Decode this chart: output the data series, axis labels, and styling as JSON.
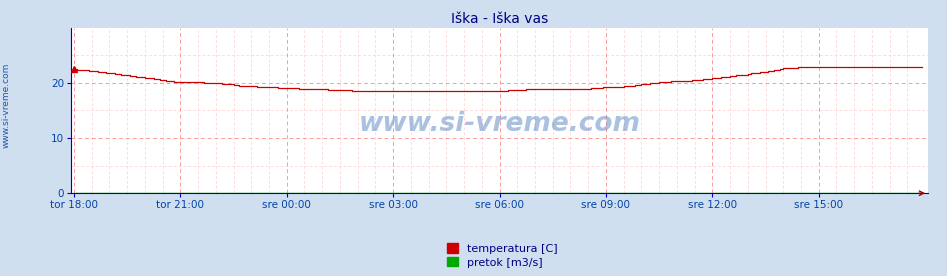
{
  "title": "Iška - Iška vas",
  "title_color": "#000080",
  "bg_color": "#d0dff0",
  "plot_bg_color": "#ffffff",
  "axis_color": "#0000bb",
  "grid_color_major": "#ff9999",
  "grid_color_minor": "#ffcccc",
  "tick_label_color": "#0044aa",
  "watermark": "www.si-vreme.com",
  "watermark_color": "#4477bb",
  "watermark_alpha": 0.45,
  "xticklabels": [
    "tor 18:00",
    "tor 21:00",
    "sre 00:00",
    "sre 03:00",
    "sre 06:00",
    "sre 09:00",
    "sre 12:00",
    "sre 15:00"
  ],
  "xtick_positions": [
    0,
    36,
    72,
    108,
    144,
    180,
    216,
    252
  ],
  "yticks": [
    0,
    10,
    20
  ],
  "ylim": [
    0,
    30
  ],
  "xlim": [
    -1,
    289
  ],
  "temp_color": "#cc0000",
  "flow_color": "#00aa00",
  "legend_temp": "temperatura [C]",
  "legend_flow": "pretok [m3/s]",
  "n_points": 288,
  "temp_data": [
    22.5,
    22.4,
    22.4,
    22.3,
    22.3,
    22.2,
    22.2,
    22.1,
    22.0,
    22.0,
    21.9,
    21.8,
    21.8,
    21.7,
    21.6,
    21.6,
    21.5,
    21.4,
    21.4,
    21.3,
    21.2,
    21.1,
    21.0,
    21.0,
    20.9,
    20.8,
    20.8,
    20.7,
    20.6,
    20.5,
    20.5,
    20.4,
    20.3,
    20.3,
    20.2,
    20.2,
    20.2,
    20.2,
    20.2,
    20.2,
    20.2,
    20.1,
    20.1,
    20.1,
    20.0,
    20.0,
    20.0,
    20.0,
    19.9,
    19.9,
    19.8,
    19.8,
    19.7,
    19.7,
    19.6,
    19.6,
    19.5,
    19.5,
    19.4,
    19.4,
    19.4,
    19.4,
    19.3,
    19.3,
    19.3,
    19.3,
    19.2,
    19.2,
    19.2,
    19.1,
    19.1,
    19.0,
    19.0,
    19.0,
    19.0,
    19.0,
    18.9,
    18.9,
    18.9,
    18.8,
    18.8,
    18.8,
    18.8,
    18.8,
    18.8,
    18.8,
    18.7,
    18.7,
    18.7,
    18.7,
    18.7,
    18.7,
    18.7,
    18.7,
    18.6,
    18.6,
    18.6,
    18.6,
    18.6,
    18.6,
    18.6,
    18.6,
    18.6,
    18.6,
    18.6,
    18.6,
    18.6,
    18.6,
    18.6,
    18.6,
    18.6,
    18.6,
    18.6,
    18.6,
    18.6,
    18.6,
    18.6,
    18.6,
    18.5,
    18.5,
    18.5,
    18.5,
    18.5,
    18.5,
    18.5,
    18.5,
    18.5,
    18.5,
    18.5,
    18.5,
    18.5,
    18.5,
    18.5,
    18.5,
    18.5,
    18.5,
    18.5,
    18.5,
    18.5,
    18.5,
    18.5,
    18.5,
    18.5,
    18.5,
    18.6,
    18.6,
    18.6,
    18.7,
    18.7,
    18.7,
    18.7,
    18.7,
    18.7,
    18.8,
    18.8,
    18.8,
    18.8,
    18.8,
    18.8,
    18.8,
    18.8,
    18.8,
    18.8,
    18.8,
    18.8,
    18.8,
    18.8,
    18.8,
    18.8,
    18.8,
    18.8,
    18.8,
    18.8,
    18.8,
    18.8,
    19.0,
    19.0,
    19.1,
    19.1,
    19.2,
    19.2,
    19.2,
    19.3,
    19.3,
    19.3,
    19.3,
    19.4,
    19.4,
    19.5,
    19.5,
    19.6,
    19.6,
    19.7,
    19.8,
    19.8,
    19.9,
    20.0,
    20.0,
    20.1,
    20.1,
    20.2,
    20.2,
    20.3,
    20.3,
    20.3,
    20.3,
    20.4,
    20.4,
    20.4,
    20.5,
    20.5,
    20.5,
    20.5,
    20.6,
    20.6,
    20.7,
    20.8,
    20.8,
    20.9,
    21.0,
    21.0,
    21.1,
    21.2,
    21.3,
    21.4,
    21.5,
    21.5,
    21.5,
    21.6,
    21.7,
    21.8,
    21.8,
    21.9,
    21.9,
    22.0,
    22.1,
    22.2,
    22.3,
    22.4,
    22.5,
    22.6,
    22.6,
    22.7,
    22.7,
    22.7,
    22.8,
    22.8,
    22.9,
    22.9,
    22.9,
    22.9,
    22.9,
    22.9,
    22.9,
    22.9,
    22.9,
    22.9,
    22.9,
    22.9,
    22.9,
    22.9,
    22.9,
    22.9,
    22.9,
    22.9,
    22.9,
    22.9,
    22.9,
    22.9,
    22.9,
    22.9,
    22.9,
    22.9,
    22.9,
    22.9,
    22.9,
    22.9,
    22.9,
    22.9,
    22.9,
    22.9,
    22.9,
    22.9,
    22.9,
    22.9,
    22.9,
    22.9,
    22.9
  ],
  "flow_data_value": 0.0,
  "sidebar_text": "www.si-vreme.com",
  "sidebar_color": "#2255aa",
  "sidebar_fontsize": 6.5
}
